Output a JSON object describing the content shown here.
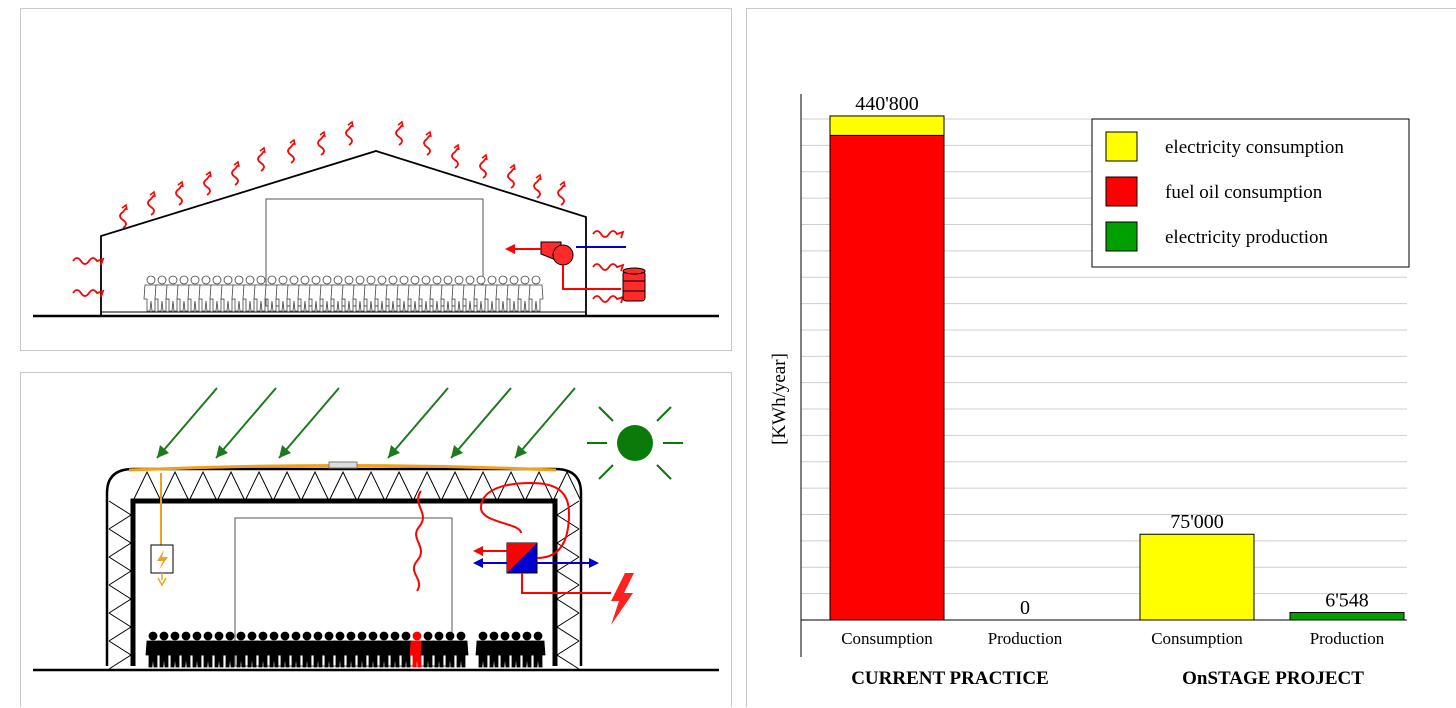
{
  "colors": {
    "electricity_consumption": "#ffff00",
    "fuel_oil_consumption": "#ff0000",
    "electricity_production": "#00a000",
    "heat_wave": "#ff0000",
    "sun_arrow": "#1e7a1e",
    "solar_panel": "#f0a020",
    "water_line": "#0000cc"
  },
  "icons": {
    "heat": "heat-wave-icon",
    "fan": "fan-icon",
    "barrel": "oil-barrel-icon",
    "sun": "sun-icon",
    "lightning": "lightning-icon",
    "heat_pump": "heat-pump-icon",
    "inverter": "inverter-icon",
    "crowd": "crowd-icon"
  },
  "chart_data": {
    "type": "bar",
    "ylabel": "[KWh/year]",
    "grid": true,
    "legend_position": "top-right",
    "groups": [
      {
        "label": "CURRENT PRACTICE",
        "categories": [
          "Consumption",
          "Production"
        ]
      },
      {
        "label": "OnSTAGE PROJECT",
        "categories": [
          "Consumption",
          "Production"
        ]
      }
    ],
    "bars": [
      {
        "group": "CURRENT PRACTICE",
        "category": "Consumption",
        "electricity_consumption": 17000,
        "fuel_oil_consumption": 423800,
        "electricity_production": 0,
        "total_label": "440'800"
      },
      {
        "group": "CURRENT PRACTICE",
        "category": "Production",
        "electricity_consumption": 0,
        "fuel_oil_consumption": 0,
        "electricity_production": 0,
        "total_label": "0"
      },
      {
        "group": "OnSTAGE PROJECT",
        "category": "Consumption",
        "electricity_consumption": 75000,
        "fuel_oil_consumption": 0,
        "electricity_production": 0,
        "total_label": "75'000"
      },
      {
        "group": "OnSTAGE PROJECT",
        "category": "Production",
        "electricity_consumption": 0,
        "fuel_oil_consumption": 0,
        "electricity_production": 6548,
        "total_label": "6'548"
      }
    ],
    "legend": [
      {
        "key": "electricity_consumption",
        "label": "electricity consumption"
      },
      {
        "key": "fuel_oil_consumption",
        "label": "fuel oil consumption"
      },
      {
        "key": "electricity_production",
        "label": "electricity production"
      }
    ],
    "ylim": [
      0,
      460000
    ]
  }
}
